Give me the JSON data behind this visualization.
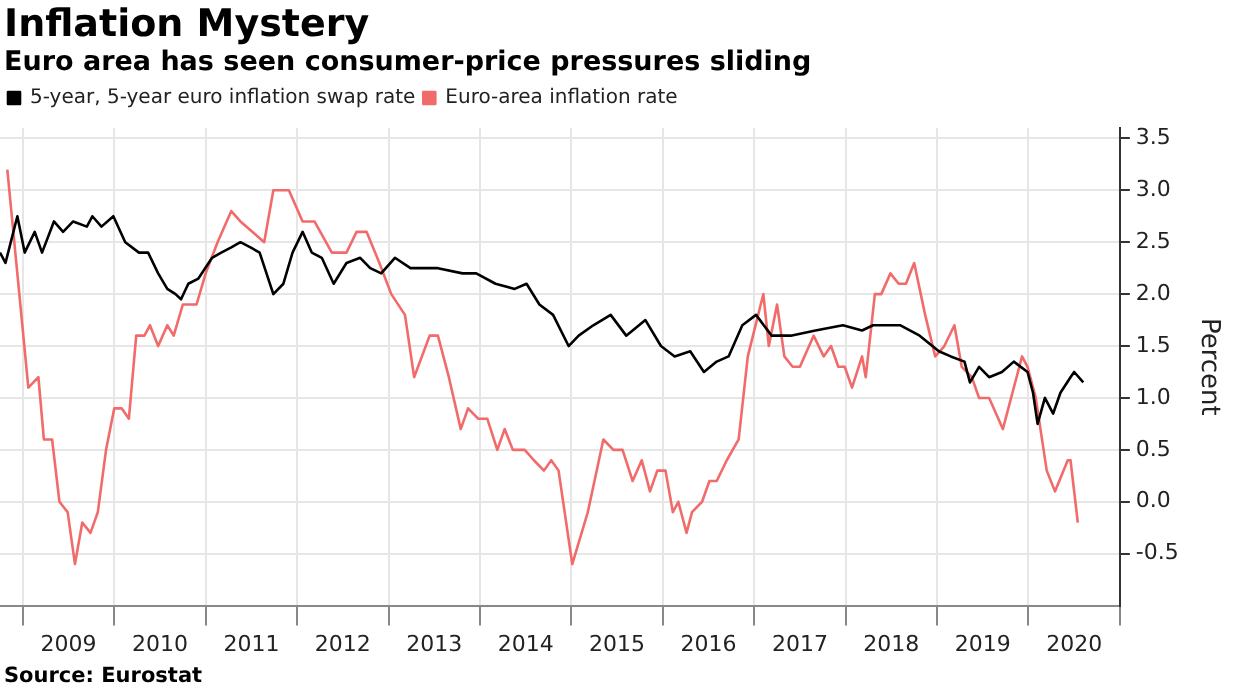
{
  "chart_data": {
    "type": "line",
    "title": "Inflation Mystery",
    "subtitle": "Euro area has seen consumer-price pressures sliding",
    "ylabel": "Percent",
    "annotations": [
      "Source: Eurostat"
    ],
    "xlim": [
      2008.75,
      2021.0
    ],
    "xticks": [
      {
        "value": 2009,
        "label": null
      },
      {
        "value": 2009.5,
        "label": "2009"
      },
      {
        "value": 2010,
        "label": null
      },
      {
        "value": 2010.5,
        "label": "2010"
      },
      {
        "value": 2011,
        "label": null
      },
      {
        "value": 2011.5,
        "label": "2011"
      },
      {
        "value": 2012,
        "label": null
      },
      {
        "value": 2012.5,
        "label": "2012"
      },
      {
        "value": 2013,
        "label": null
      },
      {
        "value": 2013.5,
        "label": "2013"
      },
      {
        "value": 2014,
        "label": null
      },
      {
        "value": 2014.5,
        "label": "2014"
      },
      {
        "value": 2015,
        "label": null
      },
      {
        "value": 2015.5,
        "label": "2015"
      },
      {
        "value": 2016,
        "label": null
      },
      {
        "value": 2016.5,
        "label": "2016"
      },
      {
        "value": 2017,
        "label": null
      },
      {
        "value": 2017.5,
        "label": "2017"
      },
      {
        "value": 2018,
        "label": null
      },
      {
        "value": 2018.5,
        "label": "2018"
      },
      {
        "value": 2019,
        "label": null
      },
      {
        "value": 2019.5,
        "label": "2019"
      },
      {
        "value": 2020,
        "label": null
      },
      {
        "value": 2020.5,
        "label": "2020"
      },
      {
        "value": 2021,
        "label": null
      }
    ],
    "ylim": [
      -1.0,
      3.6
    ],
    "yticks": [
      {
        "value": -0.5,
        "label": "-0.5"
      },
      {
        "value": 0,
        "label": "0.0"
      },
      {
        "value": 0.5,
        "label": "0.5"
      },
      {
        "value": 1,
        "label": "1.0"
      },
      {
        "value": 1.5,
        "label": "1.5"
      },
      {
        "value": 2,
        "label": "2.0"
      },
      {
        "value": 2.5,
        "label": "2.5"
      },
      {
        "value": 3,
        "label": "3.0"
      },
      {
        "value": 3.5,
        "label": "3.5"
      }
    ],
    "grid": true,
    "legend": "top left",
    "marker": "none",
    "line_style": "solid",
    "series": [
      {
        "name": "5-year, 5-year euro inflation swap rate",
        "color": "#000000",
        "x": [
          2008.75,
          2008.81,
          2008.94,
          2009.02,
          2009.13,
          2009.21,
          2009.34,
          2009.44,
          2009.55,
          2009.7,
          2009.76,
          2009.86,
          2009.99,
          2010.12,
          2010.27,
          2010.37,
          2010.48,
          2010.58,
          2010.67,
          2010.73,
          2010.81,
          2010.92,
          2011.07,
          2011.17,
          2011.28,
          2011.38,
          2011.49,
          2011.59,
          2011.74,
          2011.85,
          2011.95,
          2012.06,
          2012.16,
          2012.27,
          2012.4,
          2012.54,
          2012.69,
          2012.8,
          2012.92,
          2013.07,
          2013.24,
          2013.54,
          2013.81,
          2013.96,
          2014.17,
          2014.38,
          2014.51,
          2014.65,
          2014.8,
          2014.97,
          2015.08,
          2015.24,
          2015.43,
          2015.6,
          2015.81,
          2015.98,
          2016.13,
          2016.3,
          2016.45,
          2016.59,
          2016.72,
          2016.87,
          2017.02,
          2017.19,
          2017.4,
          2017.67,
          2017.97,
          2018.18,
          2018.3,
          2018.6,
          2018.81,
          2019.02,
          2019.15,
          2019.3,
          2019.36,
          2019.46,
          2019.57,
          2019.71,
          2019.84,
          2019.99,
          2020.05,
          2020.1,
          2020.18,
          2020.27,
          2020.35,
          2020.46,
          2020.5,
          2020.6
        ],
        "values": [
          2.4,
          2.3,
          2.75,
          2.4,
          2.6,
          2.4,
          2.7,
          2.6,
          2.7,
          2.65,
          2.75,
          2.65,
          2.75,
          2.5,
          2.4,
          2.4,
          2.2,
          2.05,
          2.0,
          1.95,
          2.1,
          2.15,
          2.35,
          2.4,
          2.45,
          2.5,
          2.45,
          2.4,
          2.0,
          2.1,
          2.4,
          2.6,
          2.4,
          2.35,
          2.1,
          2.3,
          2.35,
          2.25,
          2.2,
          2.35,
          2.25,
          2.25,
          2.2,
          2.2,
          2.1,
          2.05,
          2.1,
          1.9,
          1.8,
          1.5,
          1.6,
          1.7,
          1.8,
          1.6,
          1.75,
          1.5,
          1.4,
          1.45,
          1.25,
          1.35,
          1.4,
          1.7,
          1.8,
          1.6,
          1.6,
          1.65,
          1.7,
          1.65,
          1.7,
          1.7,
          1.6,
          1.45,
          1.4,
          1.35,
          1.15,
          1.3,
          1.2,
          1.25,
          1.35,
          1.25,
          1.05,
          0.75,
          1.0,
          0.85,
          1.05,
          1.2,
          1.25,
          1.15
        ]
      },
      {
        "name": "Euro-area inflation rate",
        "color": "#f26b6b",
        "x": [
          2008.83,
          2009.06,
          2009.17,
          2009.23,
          2009.32,
          2009.4,
          2009.49,
          2009.57,
          2009.65,
          2009.74,
          2009.82,
          2009.91,
          2010.0,
          2010.08,
          2010.16,
          2010.24,
          2010.33,
          2010.39,
          2010.48,
          2010.58,
          2010.65,
          2010.75,
          2010.9,
          2011.0,
          2011.13,
          2011.28,
          2011.38,
          2011.64,
          2011.74,
          2011.91,
          2012.06,
          2012.19,
          2012.38,
          2012.54,
          2012.65,
          2012.76,
          2012.9,
          2013.03,
          2013.18,
          2013.28,
          2013.45,
          2013.54,
          2013.66,
          2013.79,
          2013.87,
          2013.98,
          2014.08,
          2014.19,
          2014.27,
          2014.36,
          2014.49,
          2014.59,
          2014.7,
          2014.78,
          2014.86,
          2015.01,
          2015.18,
          2015.35,
          2015.46,
          2015.56,
          2015.67,
          2015.77,
          2015.86,
          2015.94,
          2016.03,
          2016.11,
          2016.17,
          2016.26,
          2016.32,
          2016.43,
          2016.51,
          2016.59,
          2016.7,
          2016.83,
          2016.93,
          2017.1,
          2017.16,
          2017.25,
          2017.33,
          2017.42,
          2017.5,
          2017.65,
          2017.76,
          2017.84,
          2017.92,
          2017.99,
          2018.07,
          2018.18,
          2018.22,
          2018.32,
          2018.39,
          2018.49,
          2018.58,
          2018.66,
          2018.75,
          2018.87,
          2018.98,
          2019.08,
          2019.19,
          2019.27,
          2019.38,
          2019.46,
          2019.57,
          2019.72,
          2019.93,
          2019.99,
          2020.08,
          2020.2,
          2020.29,
          2020.43,
          2020.46,
          2020.54
        ],
        "values": [
          3.2,
          1.1,
          1.2,
          0.6,
          0.6,
          0.0,
          -0.1,
          -0.6,
          -0.2,
          -0.3,
          -0.1,
          0.5,
          0.9,
          0.9,
          0.8,
          1.6,
          1.6,
          1.7,
          1.5,
          1.7,
          1.6,
          1.9,
          1.9,
          2.2,
          2.5,
          2.8,
          2.7,
          2.5,
          3.0,
          3.0,
          2.7,
          2.7,
          2.4,
          2.4,
          2.6,
          2.6,
          2.3,
          2.0,
          1.8,
          1.2,
          1.6,
          1.6,
          1.2,
          0.7,
          0.9,
          0.8,
          0.8,
          0.5,
          0.7,
          0.5,
          0.5,
          0.4,
          0.3,
          0.4,
          0.3,
          -0.6,
          -0.1,
          0.6,
          0.5,
          0.5,
          0.2,
          0.4,
          0.1,
          0.3,
          0.3,
          -0.1,
          0.0,
          -0.3,
          -0.1,
          0.0,
          0.2,
          0.2,
          0.4,
          0.6,
          1.4,
          2.0,
          1.5,
          1.9,
          1.4,
          1.3,
          1.3,
          1.6,
          1.4,
          1.5,
          1.3,
          1.3,
          1.1,
          1.4,
          1.2,
          2.0,
          2.0,
          2.2,
          2.1,
          2.1,
          2.3,
          1.8,
          1.4,
          1.5,
          1.7,
          1.3,
          1.2,
          1.0,
          1.0,
          0.7,
          1.4,
          1.3,
          1.0,
          0.3,
          0.1,
          0.4,
          0.4,
          -0.2
        ]
      }
    ]
  }
}
